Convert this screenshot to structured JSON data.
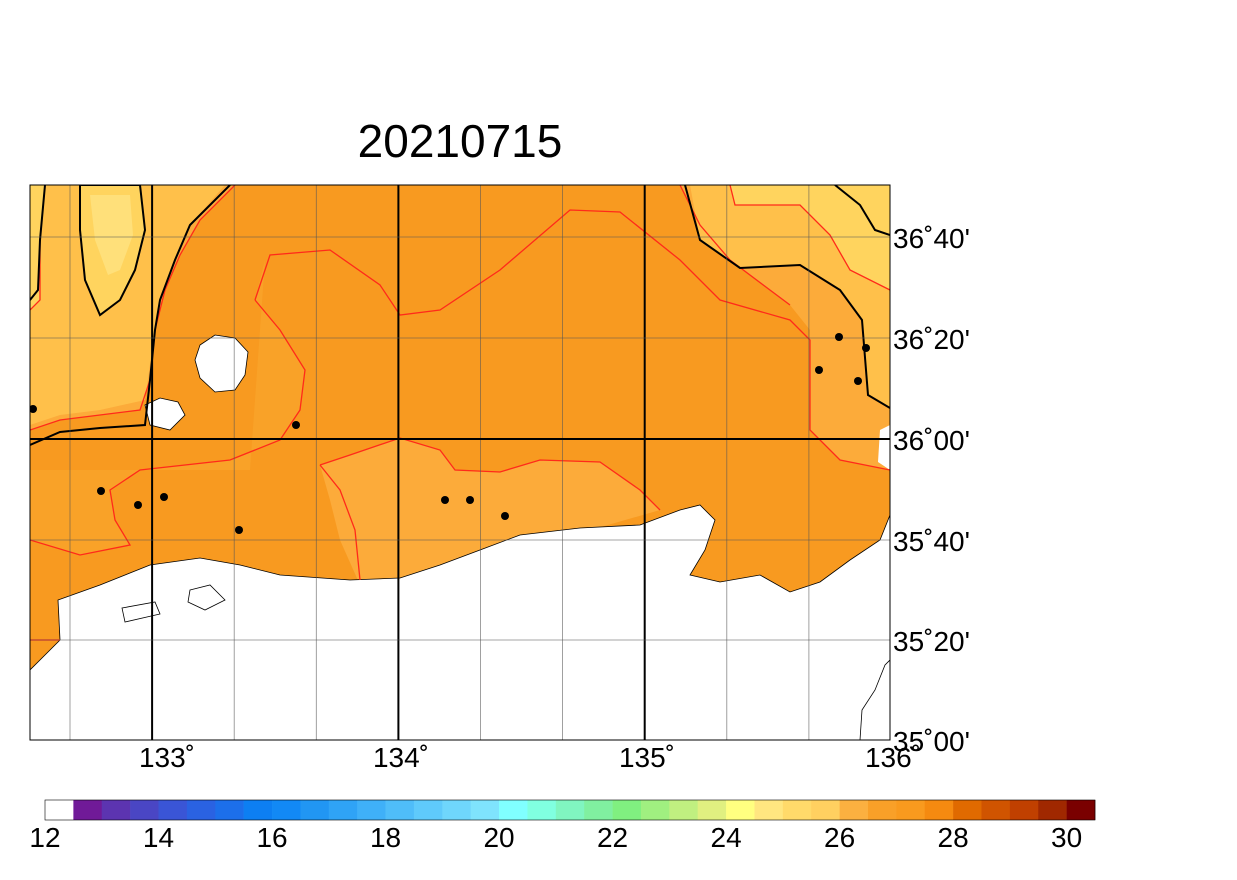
{
  "title": "20210715",
  "map": {
    "lat_labels": [
      "36˚40'",
      "36˚20'",
      "36˚00'",
      "35˚40'",
      "35˚20'",
      "35˚00'"
    ],
    "lon_labels": [
      "133˚",
      "134˚",
      "135˚",
      "136˚"
    ]
  },
  "colorbar": {
    "ticks": [
      12,
      14,
      16,
      18,
      20,
      22,
      24,
      26,
      28,
      30
    ],
    "colors": [
      "#ffffff",
      "#701a98",
      "#5c34b0",
      "#4a46c4",
      "#3a55d6",
      "#2a62e2",
      "#1c6fea",
      "#0d7ff2",
      "#1289f5",
      "#2196f3",
      "#2fa3f6",
      "#3fb0f8",
      "#4fbdf9",
      "#5fcafb",
      "#6fd6fc",
      "#7fe3fd",
      "#80ffff",
      "#80ffe0",
      "#80f5c0",
      "#80f0a0",
      "#80f080",
      "#a0f080",
      "#c0f080",
      "#e0f080",
      "#ffff80",
      "#ffe680",
      "#ffda6a",
      "#ffd060",
      "#fbb040",
      "#f9a028",
      "#f99a1e",
      "#f58a10",
      "#e06a00",
      "#d05400",
      "#c04000",
      "#a02800",
      "#7a0000"
    ]
  }
}
